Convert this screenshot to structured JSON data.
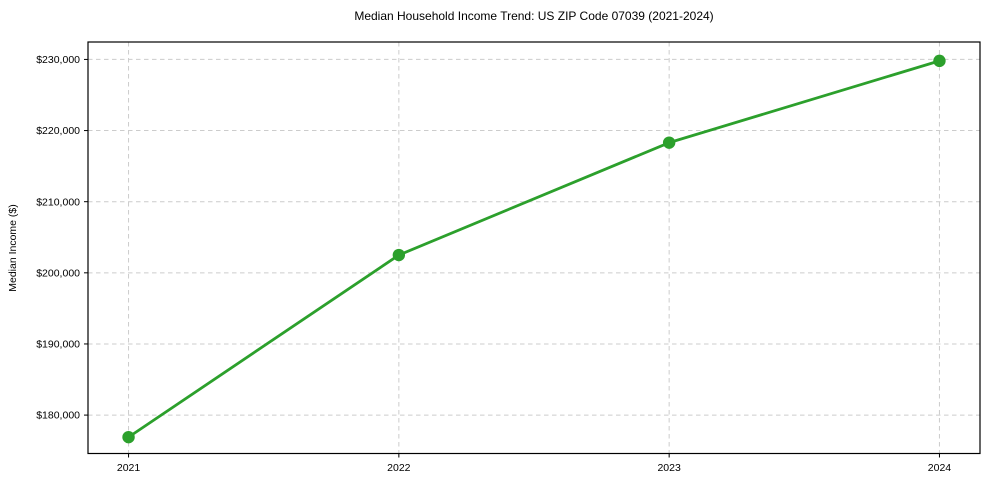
{
  "figure": {
    "background": "#ffffff"
  },
  "chart_data": {
    "type": "line",
    "title": "Median Household Income Trend: US ZIP Code 07039 (2021-2024)",
    "xlabel": "",
    "ylabel": "Median Income ($)",
    "x": [
      2021,
      2022,
      2023,
      2024
    ],
    "series": [
      {
        "name": "Median Household Income",
        "values": [
          176900,
          202500,
          218300,
          229800
        ],
        "color": "#2ca02c",
        "marker": "circle"
      }
    ],
    "x_ticks": {
      "values": [
        2021,
        2022,
        2023,
        2024
      ],
      "labels": [
        "2021",
        "2022",
        "2023",
        "2024"
      ]
    },
    "y_ticks": {
      "values": [
        180000,
        190000,
        200000,
        210000,
        220000,
        230000
      ],
      "labels": [
        "$180,000",
        "$190,000",
        "$200,000",
        "$210,000",
        "$220,000",
        "$230,000"
      ]
    },
    "xlim": [
      2020.85,
      2024.15
    ],
    "ylim": [
      174600,
      232450
    ],
    "grid": true,
    "grid_color": "#cccccc",
    "grid_dash": "4.5,3.5",
    "legend": "none",
    "line_width": 2.8,
    "marker_radius": 6.2,
    "spine_color": "#000000",
    "tick_color": "#000000",
    "text_color": "#000000"
  }
}
